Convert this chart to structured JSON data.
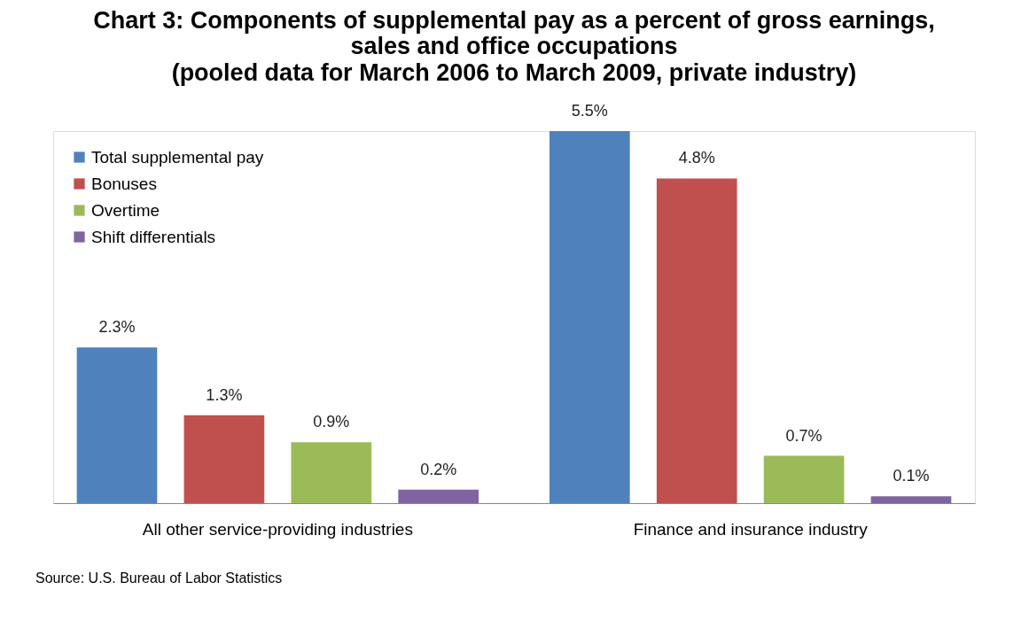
{
  "chart_data": {
    "type": "bar",
    "title": "Chart 3: Components of supplemental pay as a percent of gross earnings,\nsales and office occupations",
    "subtitle": "(pooled data for March 2006 to March 2009, private industry)",
    "categories": [
      "All other service-providing industries",
      "Finance and insurance industry"
    ],
    "series": [
      {
        "name": "Total supplemental pay",
        "color": "#4f81bd",
        "values": [
          2.3,
          5.5
        ],
        "value_labels": [
          "2.3%",
          "5.5%"
        ]
      },
      {
        "name": "Bonuses",
        "color": "#c0504d",
        "values": [
          1.3,
          4.8
        ],
        "value_labels": [
          "1.3%",
          "4.8%"
        ]
      },
      {
        "name": "Overtime",
        "color": "#9bbb59",
        "values": [
          0.9,
          0.7
        ],
        "value_labels": [
          "0.9%",
          "0.7%"
        ]
      },
      {
        "name": "Shift differentials",
        "color": "#8064a2",
        "values": [
          0.2,
          0.1
        ],
        "value_labels": [
          "0.2%",
          "0.1%"
        ]
      }
    ],
    "legend": "top left",
    "grid": false,
    "annotations": [
      "Source: U.S. Bureau of Labor Statistics"
    ]
  }
}
